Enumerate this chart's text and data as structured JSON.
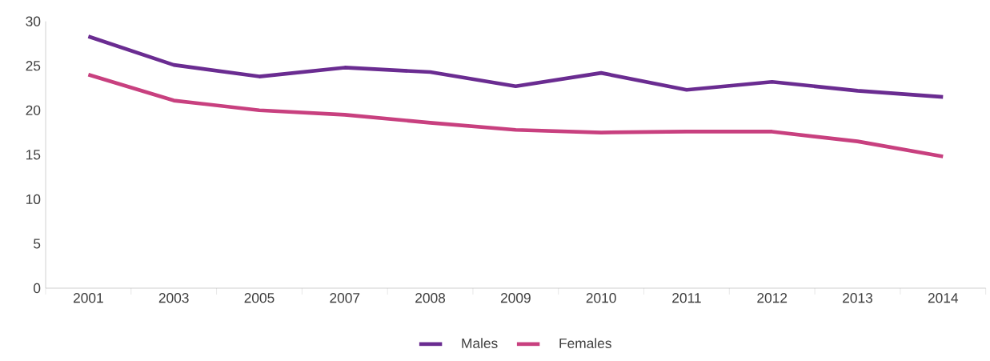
{
  "chart_data": {
    "type": "line",
    "categories": [
      "2001",
      "2003",
      "2005",
      "2007",
      "2008",
      "2009",
      "2010",
      "2011",
      "2012",
      "2013",
      "2014"
    ],
    "series": [
      {
        "name": "Males",
        "color": "#6a2c91",
        "values": [
          28.3,
          25.1,
          23.8,
          24.8,
          24.3,
          22.7,
          24.2,
          22.3,
          23.2,
          22.2,
          21.5
        ]
      },
      {
        "name": "Females",
        "color": "#c8407f",
        "values": [
          24.0,
          21.1,
          20.0,
          19.5,
          18.6,
          17.8,
          17.5,
          17.6,
          17.6,
          16.5,
          14.8
        ]
      }
    ],
    "ylim": [
      0,
      30
    ],
    "yticks": [
      0,
      5,
      10,
      15,
      20,
      25,
      30
    ],
    "grid": false,
    "legend": "bottom",
    "marker": "none",
    "line_style": "solid"
  }
}
